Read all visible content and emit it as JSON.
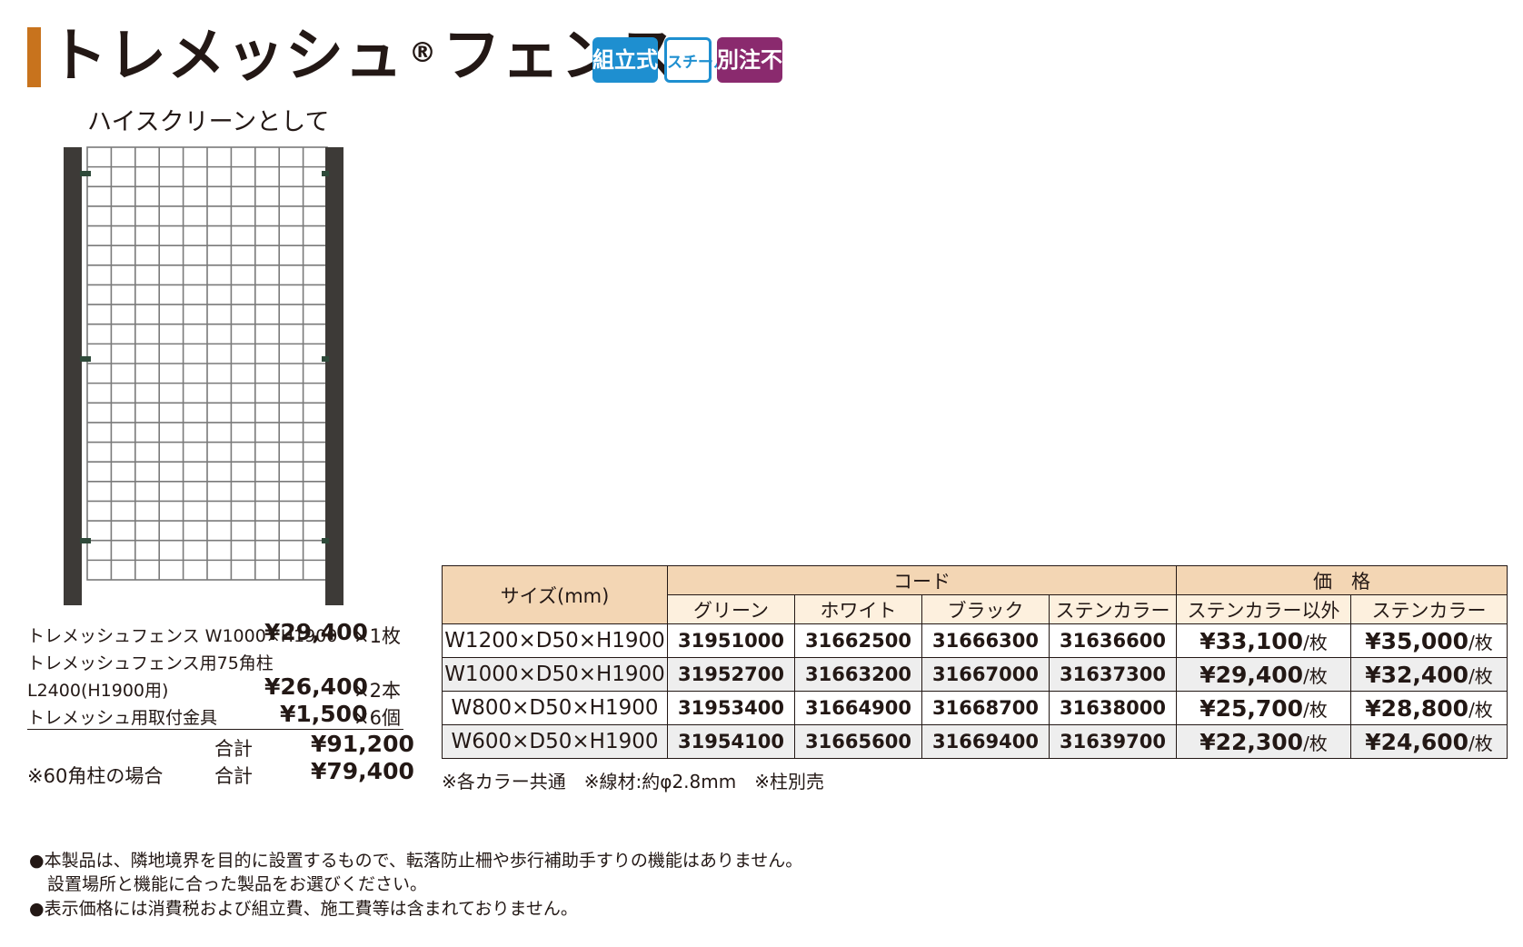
{
  "header": {
    "title_main": "トレメッシュ",
    "title_reg": "®",
    "title_rest": "フェンス",
    "badges": [
      "組立式",
      "スチール",
      "別注不可"
    ],
    "accent_color": "#c8731d"
  },
  "subtitle": "ハイスクリーンとして",
  "illustration": {
    "icon": "mesh-fence-icon"
  },
  "price_list": {
    "item1_name": "トレメッシュフェンス W1000×H1900",
    "item1_price": "¥29,400",
    "item1_qty": "×1枚",
    "item2_name_line1": "トレメッシュフェンス用75角柱",
    "item2_name_line2": "L2400(H1900用)",
    "item2_price": "¥26,400",
    "item2_qty": "×2本",
    "item3_name": "トレメッシュ用取付金具",
    "item3_price": "¥1,500",
    "item3_qty": "×6個",
    "total_label": "合計",
    "total_price": "¥91,200",
    "alt_note": "※60角柱の場合",
    "alt_total_label": "合計",
    "alt_total_price": "¥79,400"
  },
  "table": {
    "size_header": "サイズ(mm)",
    "code_header": "コード",
    "price_header": "価　格",
    "color_headers": [
      "グリーン",
      "ホワイト",
      "ブラック",
      "ステンカラー"
    ],
    "price_subheaders": [
      "ステンカラー以外",
      "ステンカラー"
    ],
    "price_unit": "/枚",
    "rows": [
      {
        "size": "W1200×D50×H1900",
        "codes": [
          "31951000",
          "31662500",
          "31666300",
          "31636600"
        ],
        "price_other": "¥33,100",
        "price_sten": "¥35,000"
      },
      {
        "size": "W1000×D50×H1900",
        "codes": [
          "31952700",
          "31663200",
          "31667000",
          "31637300"
        ],
        "price_other": "¥29,400",
        "price_sten": "¥32,400"
      },
      {
        "size": "W800×D50×H1900",
        "codes": [
          "31953400",
          "31664900",
          "31668700",
          "31638000"
        ],
        "price_other": "¥25,700",
        "price_sten": "¥28,800"
      },
      {
        "size": "W600×D50×H1900",
        "codes": [
          "31954100",
          "31665600",
          "31669400",
          "31639700"
        ],
        "price_other": "¥22,300",
        "price_sten": "¥24,600"
      }
    ],
    "header_color": "#f3d6b4"
  },
  "table_notes": "※各カラー共通　※線材:約φ2.8mm　※柱別売",
  "footnotes": {
    "line1": "●本製品は、隣地境界を目的に設置するもので、転落防止柵や歩行補助手すりの機能はありません。",
    "line2": "設置場所と機能に合った製品をお選びください。",
    "line3": "●表示価格には消費税および組立費、施工費等は含まれておりません。"
  }
}
